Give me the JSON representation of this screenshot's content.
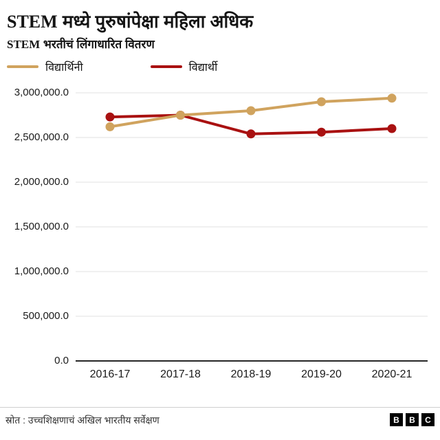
{
  "header": {
    "title_prefix": "STEM",
    "title_rest": " मध्ये पुरुषांपेक्षा महिला अधिक",
    "subtitle_prefix": "STEM",
    "subtitle_rest": " भरतीचं लिंगाधारित वितरण"
  },
  "legend": {
    "items": [
      {
        "label": "विद्यार्थिनी",
        "color": "#D0A35E"
      },
      {
        "label": "विद्यार्थी",
        "color": "#A91111"
      }
    ]
  },
  "chart_data": {
    "type": "line",
    "title": "STEM मध्ये पुरुषांपेक्षा महिला अधिक",
    "subtitle": "STEM भरतीचं लिंगाधारित वितरण",
    "categories": [
      "2016-17",
      "2017-18",
      "2018-19",
      "2019-20",
      "2020-21"
    ],
    "series": [
      {
        "name": "विद्यार्थिनी",
        "color": "#D0A35E",
        "values": [
          2620000,
          2750000,
          2800000,
          2900000,
          2940000
        ]
      },
      {
        "name": "विद्यार्थी",
        "color": "#A91111",
        "values": [
          2730000,
          2750000,
          2540000,
          2560000,
          2600000
        ]
      }
    ],
    "ylim": [
      0,
      3000000
    ],
    "yticks": [
      {
        "value": 0,
        "label": "0.0"
      },
      {
        "value": 500000,
        "label": "500,000.0"
      },
      {
        "value": 1000000,
        "label": "1,000,000.0"
      },
      {
        "value": 1500000,
        "label": "1,500,000.0"
      },
      {
        "value": 2000000,
        "label": "2,000,000.0"
      },
      {
        "value": 2500000,
        "label": "2,500,000.0"
      },
      {
        "value": 3000000,
        "label": "3,000,000.0"
      }
    ],
    "grid": true,
    "legend_position": "top",
    "xlabel": "",
    "ylabel": ""
  },
  "footer": {
    "source": "स्रोत : उच्चशिक्षणाचं अखिल भारतीय सर्वेक्षण",
    "logo_letters": [
      "B",
      "B",
      "C"
    ]
  },
  "colors": {
    "grid": "#e2e2e2",
    "zero_line": "#262626",
    "text": "#1a1a1a"
  }
}
